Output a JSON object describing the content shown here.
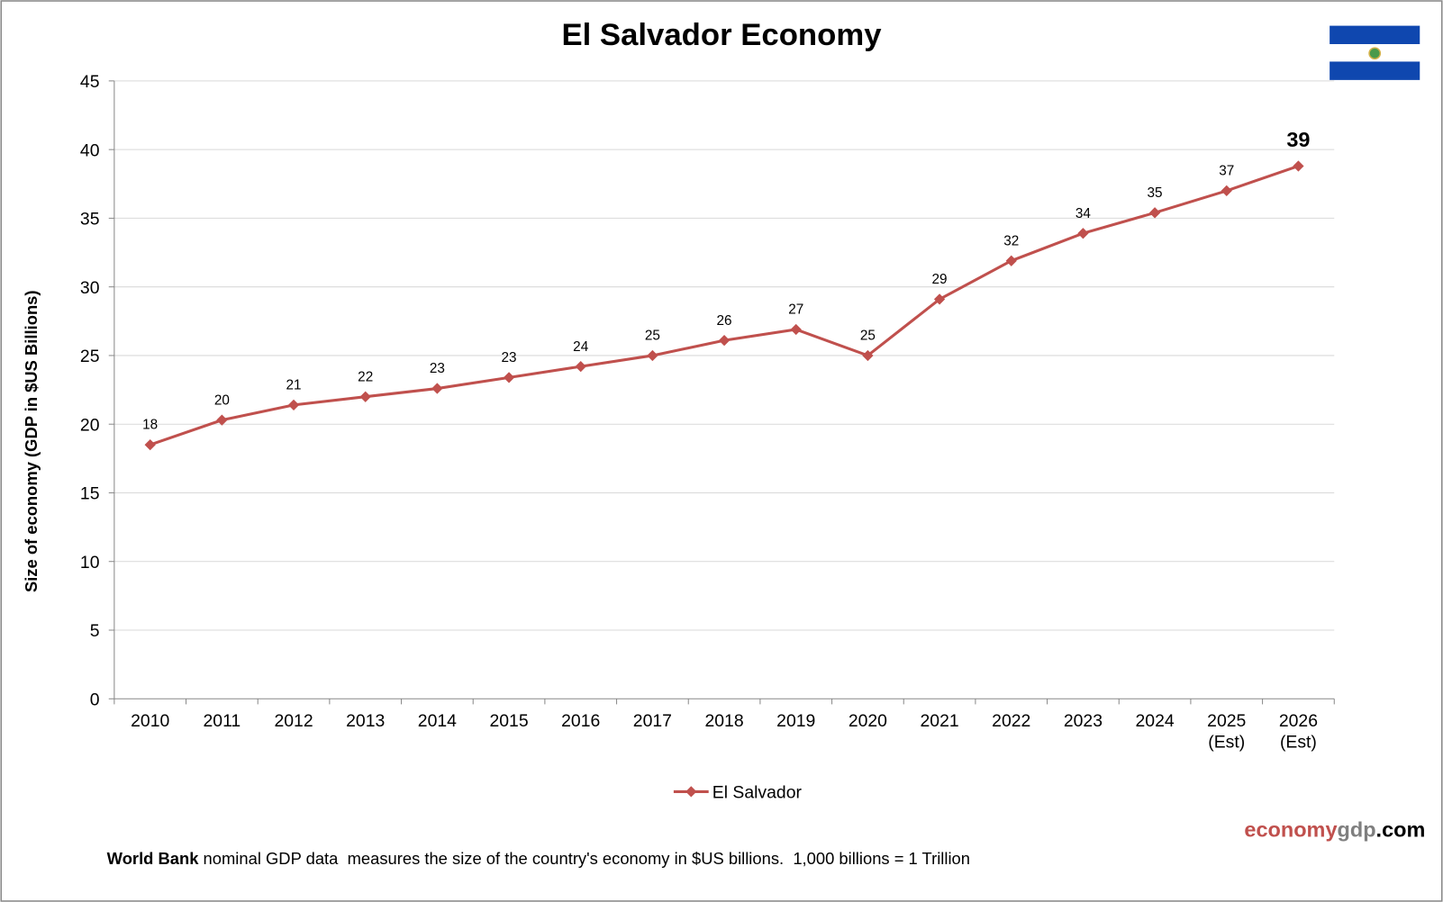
{
  "chart_data": {
    "type": "line",
    "title": "El Salvador Economy",
    "ylabel": "Size of economy (GDP in $US Billions)",
    "xlabel": "",
    "ylim": [
      0,
      45
    ],
    "yticks": [
      0,
      5,
      10,
      15,
      20,
      25,
      30,
      35,
      40,
      45
    ],
    "grid": true,
    "legend_position": "bottom",
    "categories": [
      "2010",
      "2011",
      "2012",
      "2013",
      "2014",
      "2015",
      "2016",
      "2017",
      "2018",
      "2019",
      "2020",
      "2021",
      "2022",
      "2023",
      "2024",
      "2025\n(Est)",
      "2026\n(Est)"
    ],
    "series": [
      {
        "name": "El Salvador",
        "color": "#c0504d",
        "marker": "diamond",
        "values": [
          18.5,
          20.3,
          21.4,
          22.0,
          22.6,
          23.4,
          24.2,
          25.0,
          26.1,
          26.9,
          25.0,
          29.1,
          31.9,
          33.9,
          35.4,
          37.0,
          38.8
        ],
        "data_labels": [
          "18",
          "20",
          "21",
          "22",
          "23",
          "23",
          "24",
          "25",
          "26",
          "27",
          "25",
          "29",
          "32",
          "34",
          "35",
          "37",
          "39"
        ]
      }
    ]
  },
  "flag": {
    "country": "El Salvador",
    "blue": "#0f47af",
    "white": "#ffffff"
  },
  "brand": {
    "part1": "economy",
    "part2": "gdp",
    "part3": ".com",
    "color1": "#c0504d",
    "color2": "#7f7f7f",
    "color3": "#000000"
  },
  "footer": {
    "bold": "World Bank",
    "text": " nominal GDP data  measures the size of the country's economy in $US billions.  1,000 billions = 1 Trillion"
  }
}
